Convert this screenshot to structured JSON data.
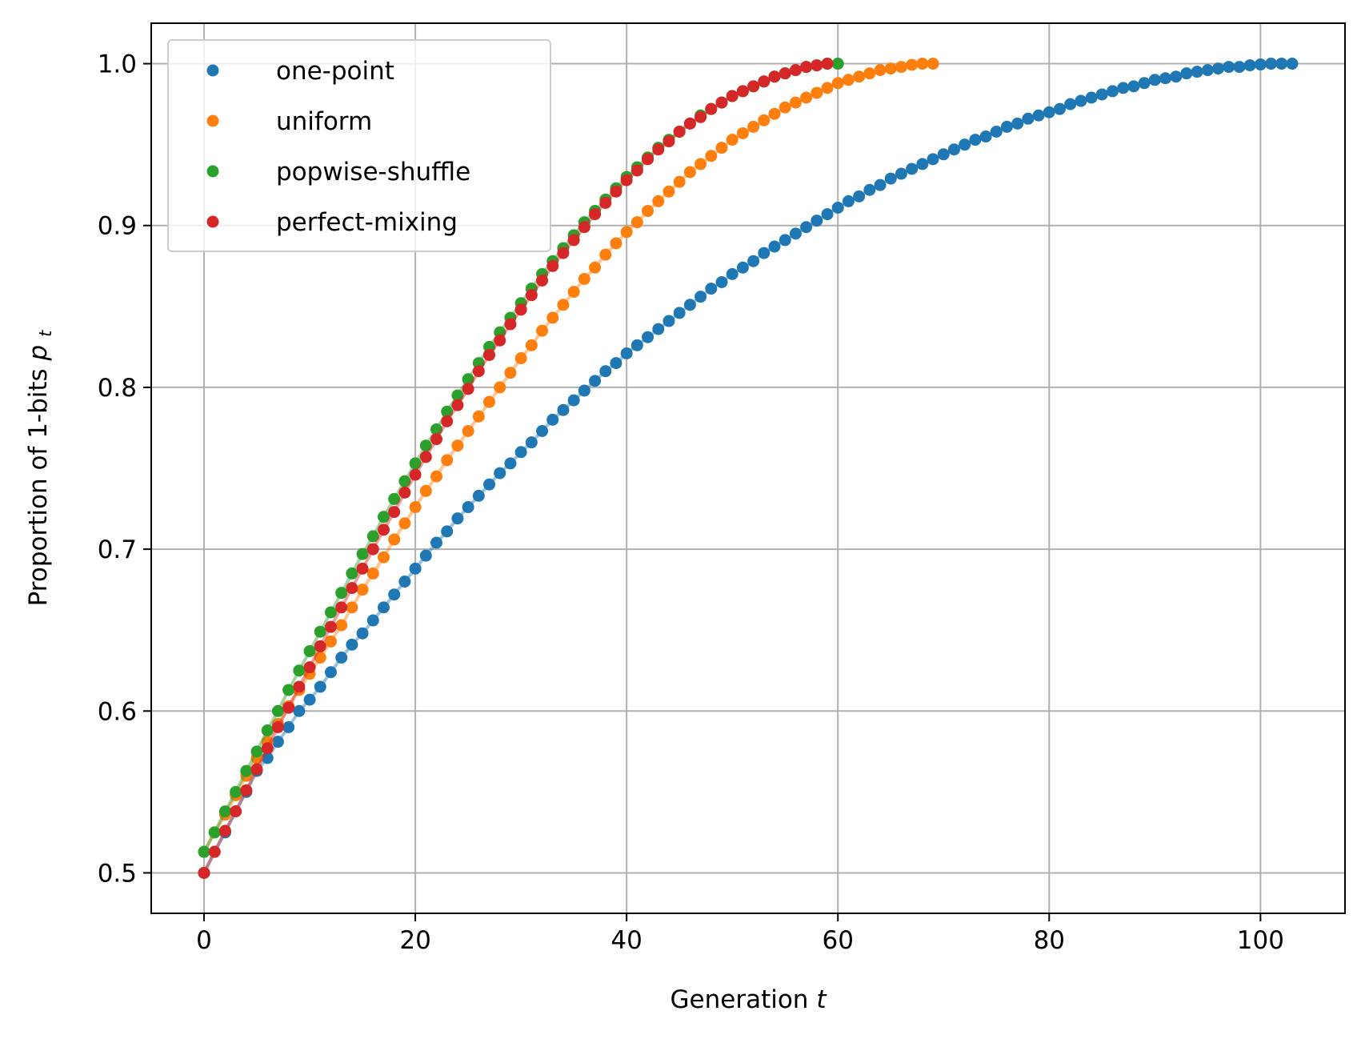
{
  "chart_data": {
    "type": "scatter",
    "title": "",
    "xlabel": "Generation",
    "xlabel_var": "t",
    "ylabel": "Proportion of 1-bits",
    "ylabel_var": "p",
    "ylabel_sub": "t",
    "xlim": [
      -5,
      108
    ],
    "ylim": [
      0.475,
      1.025
    ],
    "xticks": [
      0,
      20,
      40,
      60,
      80,
      100
    ],
    "xtick_labels": [
      "0",
      "20",
      "40",
      "60",
      "80",
      "100"
    ],
    "yticks": [
      0.5,
      0.6,
      0.7,
      0.8,
      0.9,
      1.0
    ],
    "ytick_labels": [
      "0.5",
      "0.6",
      "0.7",
      "0.8",
      "0.9",
      "1.0"
    ],
    "grid": true,
    "legend_position": "upper-left",
    "series": [
      {
        "name": "one-point",
        "color": "#1f77b4",
        "x": [
          0,
          1,
          2,
          3,
          4,
          5,
          6,
          7,
          8,
          9,
          10,
          11,
          12,
          13,
          14,
          15,
          16,
          17,
          18,
          19,
          20,
          21,
          22,
          23,
          24,
          25,
          26,
          27,
          28,
          29,
          30,
          31,
          32,
          33,
          34,
          35,
          36,
          37,
          38,
          39,
          40,
          41,
          42,
          43,
          44,
          45,
          46,
          47,
          48,
          49,
          50,
          51,
          52,
          53,
          54,
          55,
          56,
          57,
          58,
          59,
          60,
          61,
          62,
          63,
          64,
          65,
          66,
          67,
          68,
          69,
          70,
          71,
          72,
          73,
          74,
          75,
          76,
          77,
          78,
          79,
          80,
          81,
          82,
          83,
          84,
          85,
          86,
          87,
          88,
          89,
          90,
          91,
          92,
          93,
          94,
          95,
          96,
          97,
          98,
          99,
          100,
          101,
          102,
          103
        ],
        "y": [
          0.5,
          0.513,
          0.525,
          0.538,
          0.55,
          0.563,
          0.571,
          0.581,
          0.59,
          0.6,
          0.607,
          0.615,
          0.624,
          0.633,
          0.641,
          0.648,
          0.656,
          0.664,
          0.672,
          0.68,
          0.688,
          0.696,
          0.704,
          0.711,
          0.719,
          0.726,
          0.733,
          0.74,
          0.747,
          0.753,
          0.76,
          0.766,
          0.773,
          0.78,
          0.786,
          0.792,
          0.798,
          0.804,
          0.81,
          0.815,
          0.821,
          0.826,
          0.831,
          0.836,
          0.841,
          0.846,
          0.851,
          0.856,
          0.861,
          0.865,
          0.87,
          0.874,
          0.878,
          0.883,
          0.887,
          0.891,
          0.895,
          0.899,
          0.903,
          0.907,
          0.911,
          0.915,
          0.918,
          0.922,
          0.925,
          0.929,
          0.932,
          0.935,
          0.938,
          0.941,
          0.944,
          0.947,
          0.95,
          0.953,
          0.955,
          0.958,
          0.961,
          0.963,
          0.966,
          0.968,
          0.97,
          0.972,
          0.975,
          0.977,
          0.979,
          0.981,
          0.983,
          0.985,
          0.986,
          0.988,
          0.99,
          0.991,
          0.992,
          0.994,
          0.995,
          0.996,
          0.997,
          0.998,
          0.998,
          0.999,
          0.9995,
          1.0,
          1.0,
          1.0
        ]
      },
      {
        "name": "uniform",
        "color": "#ff7f0e",
        "x": [
          0,
          1,
          2,
          3,
          4,
          5,
          6,
          7,
          8,
          9,
          10,
          11,
          12,
          13,
          14,
          15,
          16,
          17,
          18,
          19,
          20,
          21,
          22,
          23,
          24,
          25,
          26,
          27,
          28,
          29,
          30,
          31,
          32,
          33,
          34,
          35,
          36,
          37,
          38,
          39,
          40,
          41,
          42,
          43,
          44,
          45,
          46,
          47,
          48,
          49,
          50,
          51,
          52,
          53,
          54,
          55,
          56,
          57,
          58,
          59,
          60,
          61,
          62,
          63,
          64,
          65,
          66,
          67,
          68,
          69
        ],
        "y": [
          0.513,
          0.525,
          0.536,
          0.548,
          0.56,
          0.571,
          0.581,
          0.592,
          0.603,
          0.613,
          0.623,
          0.633,
          0.643,
          0.653,
          0.664,
          0.675,
          0.685,
          0.695,
          0.706,
          0.716,
          0.726,
          0.736,
          0.745,
          0.755,
          0.764,
          0.773,
          0.782,
          0.791,
          0.8,
          0.809,
          0.818,
          0.826,
          0.835,
          0.843,
          0.851,
          0.859,
          0.867,
          0.874,
          0.882,
          0.889,
          0.896,
          0.902,
          0.909,
          0.915,
          0.921,
          0.927,
          0.933,
          0.938,
          0.943,
          0.948,
          0.953,
          0.957,
          0.961,
          0.965,
          0.969,
          0.973,
          0.976,
          0.979,
          0.982,
          0.985,
          0.988,
          0.99,
          0.992,
          0.994,
          0.996,
          0.997,
          0.998,
          0.9993,
          1.0,
          1.0
        ]
      },
      {
        "name": "popwise-shuffle",
        "color": "#2ca02c",
        "x": [
          0,
          1,
          2,
          3,
          4,
          5,
          6,
          7,
          8,
          9,
          10,
          11,
          12,
          13,
          14,
          15,
          16,
          17,
          18,
          19,
          20,
          21,
          22,
          23,
          24,
          25,
          26,
          27,
          28,
          29,
          30,
          31,
          32,
          33,
          34,
          35,
          36,
          37,
          38,
          39,
          40,
          41,
          42,
          43,
          44,
          45,
          46,
          47,
          48,
          49,
          50,
          51,
          52,
          53,
          54,
          55,
          56,
          57,
          58,
          59,
          60
        ],
        "y": [
          0.513,
          0.525,
          0.538,
          0.55,
          0.563,
          0.575,
          0.588,
          0.6,
          0.613,
          0.625,
          0.637,
          0.649,
          0.661,
          0.673,
          0.685,
          0.697,
          0.708,
          0.72,
          0.731,
          0.742,
          0.753,
          0.764,
          0.774,
          0.785,
          0.795,
          0.805,
          0.815,
          0.825,
          0.834,
          0.843,
          0.852,
          0.861,
          0.87,
          0.878,
          0.886,
          0.894,
          0.902,
          0.909,
          0.916,
          0.923,
          0.93,
          0.936,
          0.942,
          0.948,
          0.953,
          0.958,
          0.963,
          0.968,
          0.972,
          0.976,
          0.98,
          0.983,
          0.986,
          0.989,
          0.992,
          0.994,
          0.996,
          0.998,
          0.999,
          1.0,
          1.0
        ]
      },
      {
        "name": "perfect-mixing",
        "color": "#d62728",
        "x": [
          0,
          1,
          2,
          3,
          4,
          5,
          6,
          7,
          8,
          9,
          10,
          11,
          12,
          13,
          14,
          15,
          16,
          17,
          18,
          19,
          20,
          21,
          22,
          23,
          24,
          25,
          26,
          27,
          28,
          29,
          30,
          31,
          32,
          33,
          34,
          35,
          36,
          37,
          38,
          39,
          40,
          41,
          42,
          43,
          44,
          45,
          46,
          47,
          48,
          49,
          50,
          51,
          52,
          53,
          54,
          55,
          56,
          57,
          58,
          59
        ],
        "y": [
          0.5,
          0.513,
          0.526,
          0.538,
          0.551,
          0.564,
          0.577,
          0.59,
          0.602,
          0.615,
          0.627,
          0.64,
          0.652,
          0.664,
          0.676,
          0.688,
          0.7,
          0.712,
          0.723,
          0.735,
          0.746,
          0.757,
          0.768,
          0.779,
          0.789,
          0.799,
          0.81,
          0.82,
          0.829,
          0.839,
          0.848,
          0.857,
          0.866,
          0.875,
          0.883,
          0.891,
          0.899,
          0.907,
          0.914,
          0.921,
          0.928,
          0.934,
          0.941,
          0.947,
          0.952,
          0.958,
          0.963,
          0.967,
          0.972,
          0.976,
          0.98,
          0.983,
          0.986,
          0.989,
          0.992,
          0.994,
          0.996,
          0.998,
          0.999,
          1.0
        ]
      }
    ]
  }
}
